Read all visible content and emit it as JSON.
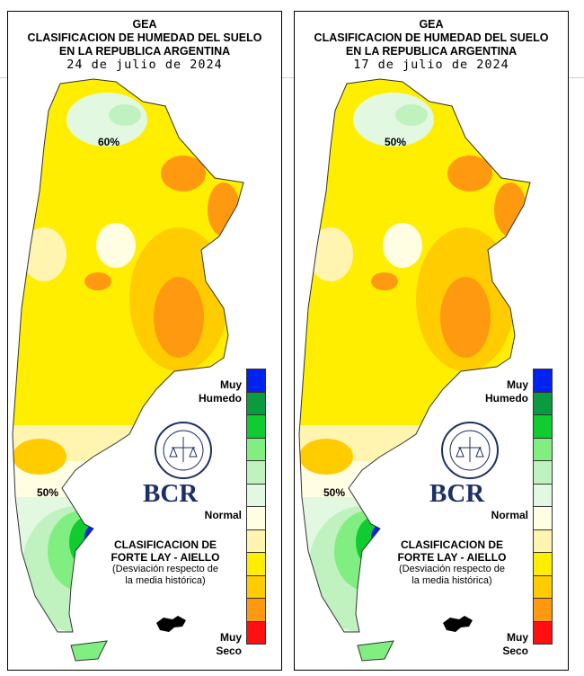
{
  "panels": [
    {
      "org": "GEA",
      "title1": "CLASIFICACION DE HUMEDAD DEL SUELO",
      "title2": "EN LA REPUBLICA ARGENTINA",
      "date": "24 de julio de 2024",
      "contour_north": "60%",
      "contour_south": "50%"
    },
    {
      "org": "GEA",
      "title1": "CLASIFICACION DE HUMEDAD DEL SUELO",
      "title2": "EN LA REPUBLICA ARGENTINA",
      "date": "17 de julio de 2024",
      "contour_north": "50%",
      "contour_south": "50%"
    }
  ],
  "legend": {
    "top_label": "Muy Humedo",
    "middle_label": "Normal",
    "bottom_label": "Muy Seco",
    "colors": [
      "#0022ee",
      "#0a9a40",
      "#10cc30",
      "#80ee80",
      "#c0f2c0",
      "#e2f8e0",
      "#fffde2",
      "#fff5b0",
      "#ffee00",
      "#ffcc00",
      "#ff9a10",
      "#ff1010"
    ]
  },
  "classification": {
    "line1": "CLASIFICACION DE",
    "line2": "FORTE LAY - AIELLO",
    "line3": "(Desviación respecto de",
    "line4": "la media histórica)"
  },
  "logo": {
    "text": "BCR",
    "seal_text": "BOLSA DE COMERCIO DE ROSARIO"
  }
}
